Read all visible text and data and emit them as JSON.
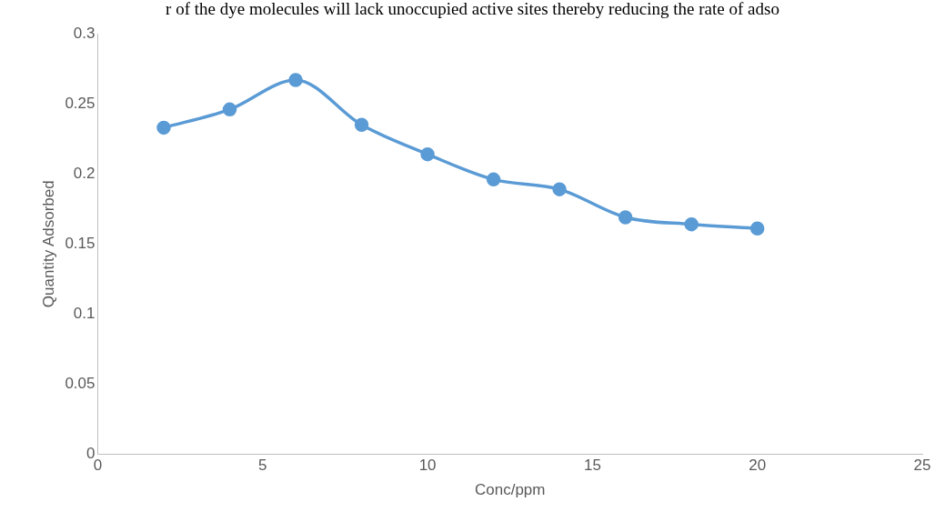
{
  "chart_data": {
    "type": "line",
    "xlabel": "Conc/ppm",
    "ylabel": "Quantity Adsorbed",
    "annotations": [
      "r of the dye molecules will lack unoccupied active sites thereby reducing the rate of adso"
    ],
    "x": [
      2,
      4,
      6,
      8,
      10,
      12,
      14,
      16,
      18,
      20
    ],
    "series": [
      {
        "color": "#5b9bd5",
        "values": [
          0.233,
          0.246,
          0.267,
          0.235,
          0.214,
          0.196,
          0.189,
          0.169,
          0.164,
          0.161
        ]
      }
    ],
    "xlim": [
      0,
      25
    ],
    "xticks": [
      0,
      5,
      10,
      15,
      20,
      25
    ],
    "ylim": [
      0,
      0.3
    ],
    "yticks": [
      0,
      0.05,
      0.1,
      0.15,
      0.2,
      0.25,
      0.3
    ],
    "grid": false,
    "legend": false,
    "marker": "circle",
    "line_style": "solid"
  }
}
